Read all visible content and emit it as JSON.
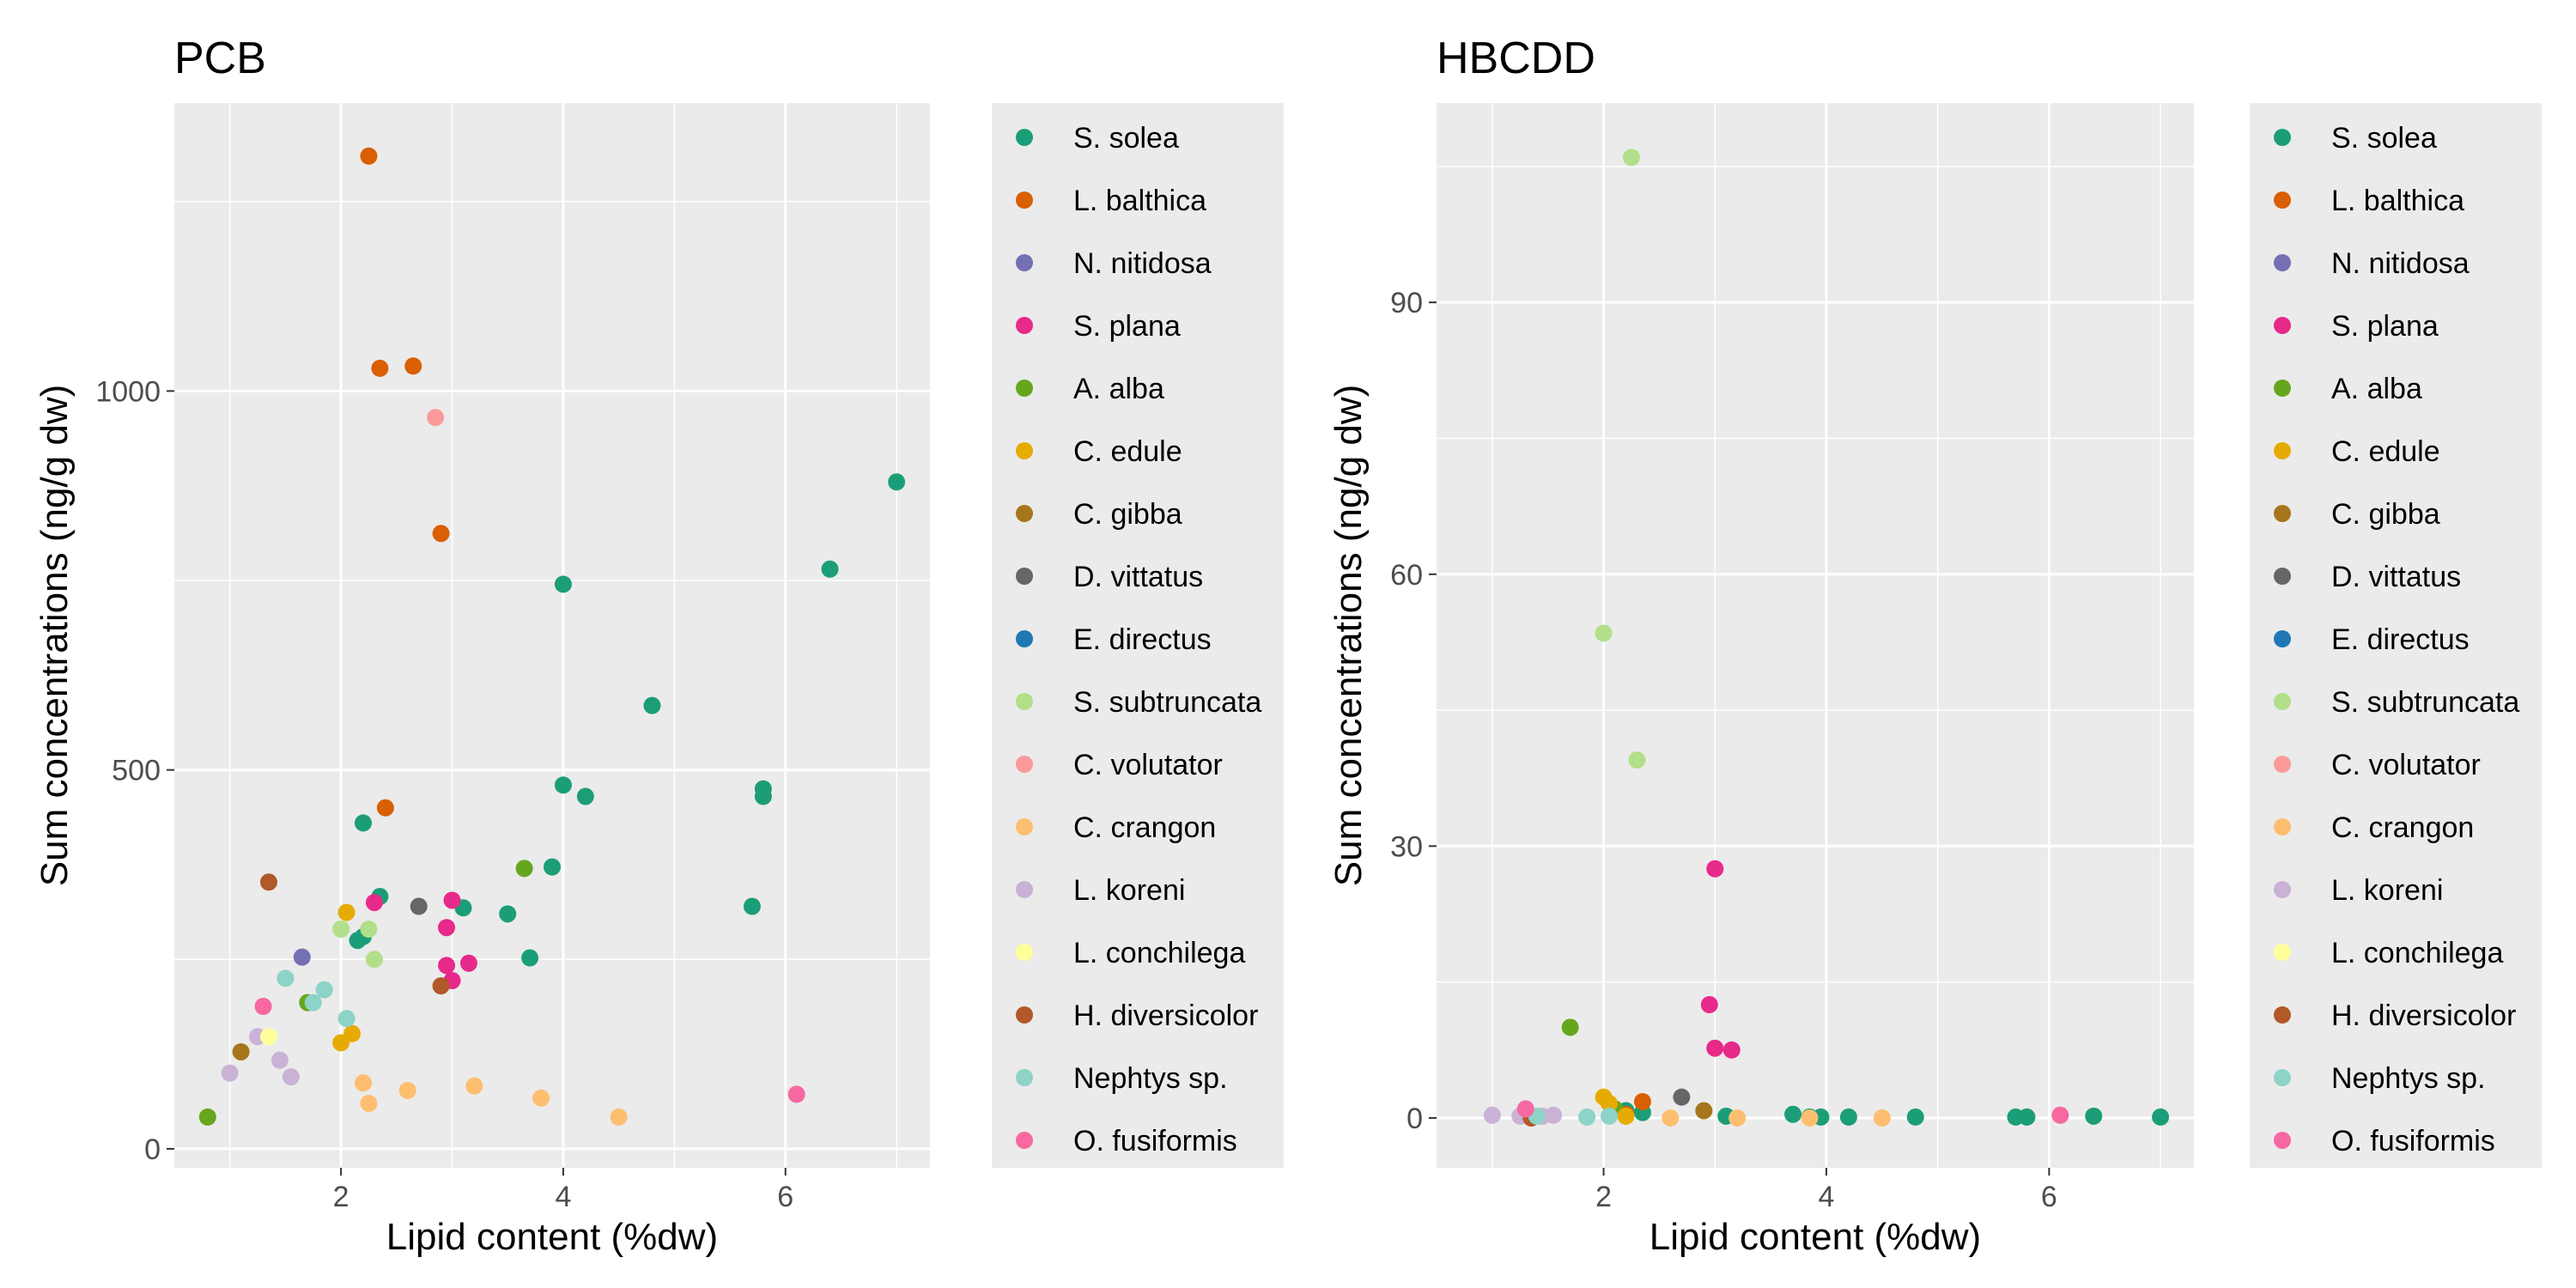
{
  "chart_data": [
    {
      "type": "scatter",
      "title": "PCB",
      "xlabel": "Lipid content (%dw)",
      "ylabel": "Sum concentrations (ng/g dw)",
      "xlim": [
        0.5,
        7.3
      ],
      "ylim": [
        -25,
        1380
      ],
      "xticks": [
        2,
        4,
        6
      ],
      "xtick_labels": [
        "2",
        "4",
        "6"
      ],
      "yticks": [
        0,
        500,
        1000
      ],
      "ytick_labels": [
        "0",
        "500",
        "1000"
      ],
      "grid": true,
      "legend_position": "right",
      "series": [
        {
          "name": "S. solea",
          "color": "#1B9E77",
          "points": [
            [
              7.0,
              880
            ],
            [
              6.4,
              765
            ],
            [
              4.0,
              745
            ],
            [
              4.8,
              585
            ],
            [
              5.8,
              475
            ],
            [
              5.8,
              465
            ],
            [
              4.2,
              465
            ],
            [
              4.0,
              480
            ],
            [
              5.7,
              320
            ],
            [
              3.9,
              372
            ],
            [
              3.5,
              310
            ],
            [
              3.7,
              252
            ],
            [
              3.1,
              318
            ],
            [
              2.2,
              430
            ],
            [
              2.35,
              333
            ],
            [
              2.2,
              280
            ],
            [
              2.15,
              275
            ]
          ]
        },
        {
          "name": "L. balthica",
          "color": "#D95F02",
          "points": [
            [
              2.25,
              1310
            ],
            [
              2.35,
              1030
            ],
            [
              2.65,
              1033
            ],
            [
              2.9,
              812
            ],
            [
              2.4,
              450
            ]
          ]
        },
        {
          "name": "N. nitidosa",
          "color": "#7570B3",
          "points": [
            [
              1.65,
              253
            ]
          ]
        },
        {
          "name": "S. plana",
          "color": "#E7298A",
          "points": [
            [
              3.0,
              328
            ],
            [
              2.3,
              325
            ],
            [
              2.95,
              292
            ],
            [
              2.95,
              242
            ],
            [
              3.15,
              245
            ],
            [
              3.0,
              222
            ]
          ]
        },
        {
          "name": "A. alba",
          "color": "#66A61E",
          "points": [
            [
              3.65,
              370
            ],
            [
              1.7,
              193
            ],
            [
              0.8,
              42
            ]
          ]
        },
        {
          "name": "C. edule",
          "color": "#E6AB02",
          "points": [
            [
              2.05,
              312
            ],
            [
              2.1,
              152
            ],
            [
              2.0,
              140
            ]
          ]
        },
        {
          "name": "C. gibba",
          "color": "#A6761D",
          "points": [
            [
              1.1,
              128
            ]
          ]
        },
        {
          "name": "D. vittatus",
          "color": "#666666",
          "points": [
            [
              2.7,
              320
            ]
          ]
        },
        {
          "name": "E. directus",
          "color": "#1F78B4",
          "points": []
        },
        {
          "name": "S. subtruncata",
          "color": "#B2DF8A",
          "points": [
            [
              2.0,
              290
            ],
            [
              2.25,
              290
            ],
            [
              2.3,
              250
            ]
          ]
        },
        {
          "name": "C. volutator",
          "color": "#FB9A99",
          "points": [
            [
              2.85,
              965
            ]
          ]
        },
        {
          "name": "C. crangon",
          "color": "#FDBF6F",
          "points": [
            [
              2.2,
              87
            ],
            [
              2.6,
              77
            ],
            [
              3.2,
              83
            ],
            [
              3.8,
              67
            ],
            [
              4.5,
              42
            ],
            [
              2.25,
              60
            ]
          ]
        },
        {
          "name": "L. koreni",
          "color": "#CAB2D6",
          "points": [
            [
              1.25,
              148
            ],
            [
              1.45,
              117
            ],
            [
              1.55,
              95
            ],
            [
              1.0,
              100
            ]
          ]
        },
        {
          "name": "L. conchilega",
          "color": "#FFFF99",
          "points": [
            [
              1.35,
              148
            ]
          ]
        },
        {
          "name": "H. diversicolor",
          "color": "#B15928",
          "points": [
            [
              1.35,
              352
            ],
            [
              2.9,
              215
            ]
          ]
        },
        {
          "name": "Nephtys sp.",
          "color": "#8DD3C7",
          "points": [
            [
              1.5,
              225
            ],
            [
              1.85,
              210
            ],
            [
              2.05,
              172
            ],
            [
              1.75,
              193
            ]
          ]
        },
        {
          "name": "O. fusiformis",
          "color": "#F768A1",
          "points": [
            [
              1.3,
              188
            ],
            [
              6.1,
              72
            ]
          ]
        }
      ]
    },
    {
      "type": "scatter",
      "title": "HBCDD",
      "xlabel": "Lipid content (%dw)",
      "ylabel": "Sum concentrations (ng/g dw)",
      "xlim": [
        0.5,
        7.3
      ],
      "ylim": [
        -5.5,
        112
      ],
      "xticks": [
        2,
        4,
        6
      ],
      "xtick_labels": [
        "2",
        "4",
        "6"
      ],
      "yticks": [
        0,
        30,
        60,
        90
      ],
      "ytick_labels": [
        "0",
        "30",
        "60",
        "90"
      ],
      "grid": true,
      "legend_position": "right",
      "series": [
        {
          "name": "S. solea",
          "color": "#1B9E77",
          "points": [
            [
              2.2,
              0.8
            ],
            [
              2.35,
              0.6
            ],
            [
              3.1,
              0.2
            ],
            [
              3.7,
              0.4
            ],
            [
              3.85,
              0.1
            ],
            [
              3.95,
              0.1
            ],
            [
              4.2,
              0.1
            ],
            [
              4.8,
              0.1
            ],
            [
              5.7,
              0.1
            ],
            [
              5.8,
              0.1
            ],
            [
              6.4,
              0.2
            ],
            [
              7.0,
              0.1
            ]
          ]
        },
        {
          "name": "L. balthica",
          "color": "#D95F02",
          "points": [
            [
              2.35,
              1.8
            ],
            [
              2.2,
              0.4
            ]
          ]
        },
        {
          "name": "N. nitidosa",
          "color": "#7570B3",
          "points": []
        },
        {
          "name": "S. plana",
          "color": "#E7298A",
          "points": [
            [
              3.0,
              27.5
            ],
            [
              2.95,
              12.5
            ],
            [
              3.0,
              7.7
            ],
            [
              3.15,
              7.5
            ]
          ]
        },
        {
          "name": "A. alba",
          "color": "#66A61E",
          "points": [
            [
              1.7,
              10.0
            ],
            [
              2.1,
              1.0
            ]
          ]
        },
        {
          "name": "C. edule",
          "color": "#E6AB02",
          "points": [
            [
              2.0,
              2.3
            ],
            [
              2.05,
              1.6
            ],
            [
              2.2,
              0.2
            ]
          ]
        },
        {
          "name": "C. gibba",
          "color": "#A6761D",
          "points": [
            [
              2.9,
              0.8
            ]
          ]
        },
        {
          "name": "D. vittatus",
          "color": "#666666",
          "points": [
            [
              2.7,
              2.3
            ]
          ]
        },
        {
          "name": "E. directus",
          "color": "#1F78B4",
          "points": []
        },
        {
          "name": "S. subtruncata",
          "color": "#B2DF8A",
          "points": [
            [
              2.25,
              106
            ],
            [
              2.0,
              53.5
            ],
            [
              2.3,
              39.5
            ]
          ]
        },
        {
          "name": "C. volutator",
          "color": "#FB9A99",
          "points": []
        },
        {
          "name": "C. crangon",
          "color": "#FDBF6F",
          "points": [
            [
              3.2,
              0.0
            ],
            [
              3.85,
              0.0
            ],
            [
              4.5,
              0.0
            ],
            [
              2.6,
              0.0
            ]
          ]
        },
        {
          "name": "L. koreni",
          "color": "#CAB2D6",
          "points": [
            [
              1.0,
              0.3
            ],
            [
              1.25,
              0.2
            ],
            [
              1.45,
              0.2
            ],
            [
              1.55,
              0.3
            ]
          ]
        },
        {
          "name": "L. conchilega",
          "color": "#FFFF99",
          "points": []
        },
        {
          "name": "H. diversicolor",
          "color": "#B15928",
          "points": [
            [
              1.35,
              0.0
            ]
          ]
        },
        {
          "name": "Nephtys sp.",
          "color": "#8DD3C7",
          "points": [
            [
              1.4,
              0.2
            ],
            [
              1.85,
              0.1
            ],
            [
              2.05,
              0.2
            ]
          ]
        },
        {
          "name": "O. fusiformis",
          "color": "#F768A1",
          "points": [
            [
              1.3,
              1.0
            ],
            [
              6.1,
              0.3
            ]
          ]
        }
      ]
    }
  ]
}
